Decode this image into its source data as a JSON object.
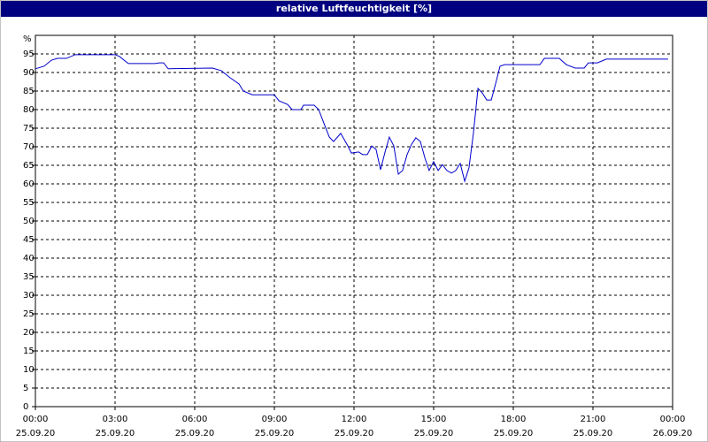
{
  "chart_data": {
    "type": "line",
    "title": "relative Luftfeuchtigkeit [%]",
    "y_label": "%",
    "x": [
      0,
      0.33,
      0.6,
      0.83,
      1.17,
      1.5,
      3,
      3.17,
      3.5,
      4.5,
      4.67,
      4.83,
      5,
      6.67,
      7,
      7.33,
      7.67,
      7.83,
      8.17,
      9,
      9.17,
      9.5,
      9.67,
      10,
      10.1,
      10.5,
      10.67,
      10.83,
      11.07,
      11.23,
      11.5,
      11.77,
      11.9,
      12.17,
      12.33,
      12.5,
      12.67,
      12.83,
      13,
      13.17,
      13.33,
      13.5,
      13.67,
      13.83,
      14,
      14.17,
      14.33,
      14.5,
      14.67,
      14.83,
      15,
      15.17,
      15.33,
      15.5,
      15.67,
      15.83,
      16,
      16.17,
      16.33,
      16.5,
      16.67,
      16.83,
      17,
      17.17,
      17.33,
      17.5,
      17.67,
      18.67,
      19,
      19.17,
      19.73,
      20,
      20.33,
      20.67,
      20.83,
      21.17,
      21.5,
      23.83
    ],
    "series": [
      {
        "color": "#0000cc",
        "values": [
          91,
          91.7,
          93.3,
          93.8,
          93.8,
          94.8,
          94.8,
          94.3,
          92.4,
          92.4,
          92.6,
          92.6,
          91,
          91.2,
          90.5,
          88.6,
          86.9,
          85,
          84,
          84,
          82.4,
          81.4,
          80,
          80,
          81.2,
          81.2,
          80,
          77,
          72.6,
          71.4,
          73.6,
          70.2,
          68.3,
          68.6,
          67.9,
          67.9,
          70.2,
          69.3,
          63.8,
          68.6,
          72.6,
          70.2,
          62.6,
          63.6,
          67.9,
          70.7,
          72.4,
          71.4,
          67,
          63.6,
          66,
          63.6,
          65.2,
          63.6,
          62.9,
          63.6,
          65.5,
          60.7,
          64.3,
          73.8,
          85.7,
          84.5,
          82.6,
          82.6,
          86.9,
          91.7,
          92.1,
          92.1,
          92.1,
          93.8,
          93.8,
          92.1,
          91.2,
          91.2,
          92.6,
          92.6,
          93.6,
          93.6
        ]
      }
    ],
    "xlim": [
      0,
      24
    ],
    "xticks": [
      {
        "value": 0,
        "label": "00:00"
      },
      {
        "value": 3,
        "label": "03:00"
      },
      {
        "value": 6,
        "label": "06:00"
      },
      {
        "value": 9,
        "label": "09:00"
      },
      {
        "value": 12,
        "label": "12:00"
      },
      {
        "value": 15,
        "label": "15:00"
      },
      {
        "value": 18,
        "label": "18:00"
      },
      {
        "value": 21,
        "label": "21:00"
      },
      {
        "value": 24,
        "label": "00:00"
      }
    ],
    "xtick_dates": [
      "25.09.20",
      "25.09.20",
      "25.09.20",
      "25.09.20",
      "25.09.20",
      "25.09.20",
      "25.09.20",
      "25.09.20",
      "26.09.20"
    ],
    "ylim": [
      0,
      100
    ],
    "yticks": [
      0,
      5,
      10,
      15,
      20,
      25,
      30,
      35,
      40,
      45,
      50,
      55,
      60,
      65,
      70,
      75,
      80,
      85,
      90,
      95
    ],
    "grid": true
  }
}
